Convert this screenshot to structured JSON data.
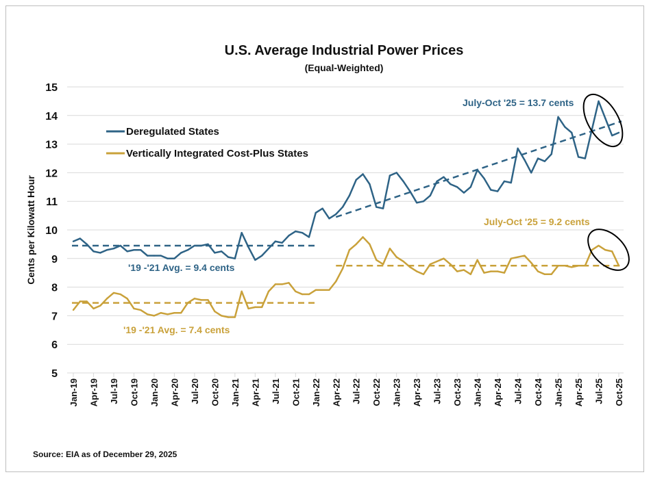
{
  "chart_data": {
    "type": "line",
    "title": "U.S. Average Industrial Power Prices",
    "subtitle": "(Equal-Weighted)",
    "ylabel": "Cents per Kilowatt Hour",
    "xlabel": "",
    "ylim": [
      5,
      15
    ],
    "yticks": [
      5,
      6,
      7,
      8,
      9,
      10,
      11,
      12,
      13,
      14,
      15
    ],
    "grid": true,
    "legend": "top-left",
    "x_start": "Jan-19",
    "x": [
      "Jan-19",
      "Feb-19",
      "Mar-19",
      "Apr-19",
      "May-19",
      "Jun-19",
      "Jul-19",
      "Aug-19",
      "Sep-19",
      "Oct-19",
      "Nov-19",
      "Dec-19",
      "Jan-20",
      "Feb-20",
      "Mar-20",
      "Apr-20",
      "May-20",
      "Jun-20",
      "Jul-20",
      "Aug-20",
      "Sep-20",
      "Oct-20",
      "Nov-20",
      "Dec-20",
      "Jan-21",
      "Feb-21",
      "Mar-21",
      "Apr-21",
      "May-21",
      "Jun-21",
      "Jul-21",
      "Aug-21",
      "Sep-21",
      "Oct-21",
      "Nov-21",
      "Dec-21",
      "Jan-22",
      "Feb-22",
      "Mar-22",
      "Apr-22",
      "May-22",
      "Jun-22",
      "Jul-22",
      "Aug-22",
      "Sep-22",
      "Oct-22",
      "Nov-22",
      "Dec-22",
      "Jan-23",
      "Feb-23",
      "Mar-23",
      "Apr-23",
      "May-23",
      "Jun-23",
      "Jul-23",
      "Aug-23",
      "Sep-23",
      "Oct-23",
      "Nov-23",
      "Dec-23",
      "Jan-24",
      "Feb-24",
      "Mar-24",
      "Apr-24",
      "May-24",
      "Jun-24",
      "Jul-24",
      "Aug-24",
      "Sep-24",
      "Oct-24",
      "Nov-24",
      "Dec-24",
      "Jan-25",
      "Feb-25",
      "Mar-25",
      "Apr-25",
      "May-25",
      "Jun-25",
      "Jul-25",
      "Aug-25",
      "Sep-25",
      "Oct-25"
    ],
    "xtick_labels": [
      "Jan-19",
      "Apr-19",
      "Jul-19",
      "Oct-19",
      "Jan-20",
      "Apr-20",
      "Jul-20",
      "Oct-20",
      "Jan-21",
      "Apr-21",
      "Jul-21",
      "Oct-21",
      "Jan-22",
      "Apr-22",
      "Jul-22",
      "Oct-22",
      "Jan-23",
      "Apr-23",
      "Jul-23",
      "Oct-23",
      "Jan-24",
      "Apr-24",
      "Jul-24",
      "Oct-24",
      "Jan-25",
      "Apr-25",
      "Jul-25",
      "Oct-25"
    ],
    "series": [
      {
        "name": "Deregulated States",
        "color": "#2e6386",
        "values": [
          9.6,
          9.7,
          9.5,
          9.25,
          9.2,
          9.3,
          9.35,
          9.45,
          9.25,
          9.3,
          9.3,
          9.1,
          9.1,
          9.1,
          9.0,
          9.0,
          9.2,
          9.3,
          9.45,
          9.45,
          9.5,
          9.2,
          9.25,
          9.05,
          9.0,
          9.9,
          9.4,
          8.95,
          9.1,
          9.35,
          9.6,
          9.55,
          9.8,
          9.95,
          9.9,
          9.75,
          10.6,
          10.75,
          10.4,
          10.55,
          10.8,
          11.2,
          11.75,
          11.95,
          11.6,
          10.8,
          10.75,
          11.9,
          12.0,
          11.7,
          11.35,
          10.95,
          11.0,
          11.2,
          11.7,
          11.85,
          11.6,
          11.5,
          11.3,
          11.5,
          12.1,
          11.8,
          11.4,
          11.35,
          11.7,
          11.65,
          12.85,
          12.45,
          12.0,
          12.5,
          12.4,
          12.65,
          13.95,
          13.6,
          13.4,
          12.55,
          12.5,
          13.5,
          14.5,
          13.9,
          13.3,
          13.4
        ]
      },
      {
        "name": "Vertically Integrated Cost-Plus States",
        "color": "#c9a13a",
        "values": [
          7.2,
          7.5,
          7.5,
          7.25,
          7.35,
          7.6,
          7.8,
          7.75,
          7.6,
          7.25,
          7.2,
          7.05,
          7.0,
          7.1,
          7.05,
          7.1,
          7.1,
          7.45,
          7.6,
          7.55,
          7.55,
          7.15,
          7.0,
          6.95,
          6.95,
          7.85,
          7.25,
          7.3,
          7.3,
          7.85,
          8.1,
          8.1,
          8.15,
          7.85,
          7.75,
          7.75,
          7.9,
          7.9,
          7.9,
          8.2,
          8.65,
          9.3,
          9.5,
          9.75,
          9.5,
          8.95,
          8.8,
          9.35,
          9.05,
          8.9,
          8.7,
          8.55,
          8.45,
          8.8,
          8.9,
          9.0,
          8.8,
          8.55,
          8.6,
          8.45,
          8.95,
          8.5,
          8.55,
          8.55,
          8.5,
          9.0,
          9.05,
          9.1,
          8.85,
          8.55,
          8.45,
          8.45,
          8.75,
          8.75,
          8.7,
          8.75,
          8.75,
          9.3,
          9.45,
          9.3,
          9.25,
          8.75
        ]
      }
    ],
    "reference_lines": [
      {
        "series": "Deregulated States",
        "from": "Jan-19",
        "to": "Jan-22",
        "y_start": 9.45,
        "y_end": 9.45
      },
      {
        "series": "Vertically Integrated Cost-Plus States",
        "from": "Jan-19",
        "to": "Jan-22",
        "y_start": 7.45,
        "y_end": 7.45
      },
      {
        "series": "Deregulated States",
        "from": "Apr-22",
        "to": "Oct-25",
        "y_start": 10.45,
        "y_end": 13.8
      },
      {
        "series": "Vertically Integrated Cost-Plus States",
        "from": "Apr-22",
        "to": "Oct-25",
        "y_start": 8.75,
        "y_end": 8.75
      }
    ],
    "annotations": {
      "dereg_avg": "'19 -'21 Avg.  =  9.4 cents",
      "vert_avg": "'19 -'21 Avg.  =  7.4  cents",
      "dereg_recent": "July-Oct '25 =  13.7 cents",
      "vert_recent": "July-Oct '25  =  9.2  cents"
    },
    "source": "Source: EIA as of December 29, 2025"
  }
}
